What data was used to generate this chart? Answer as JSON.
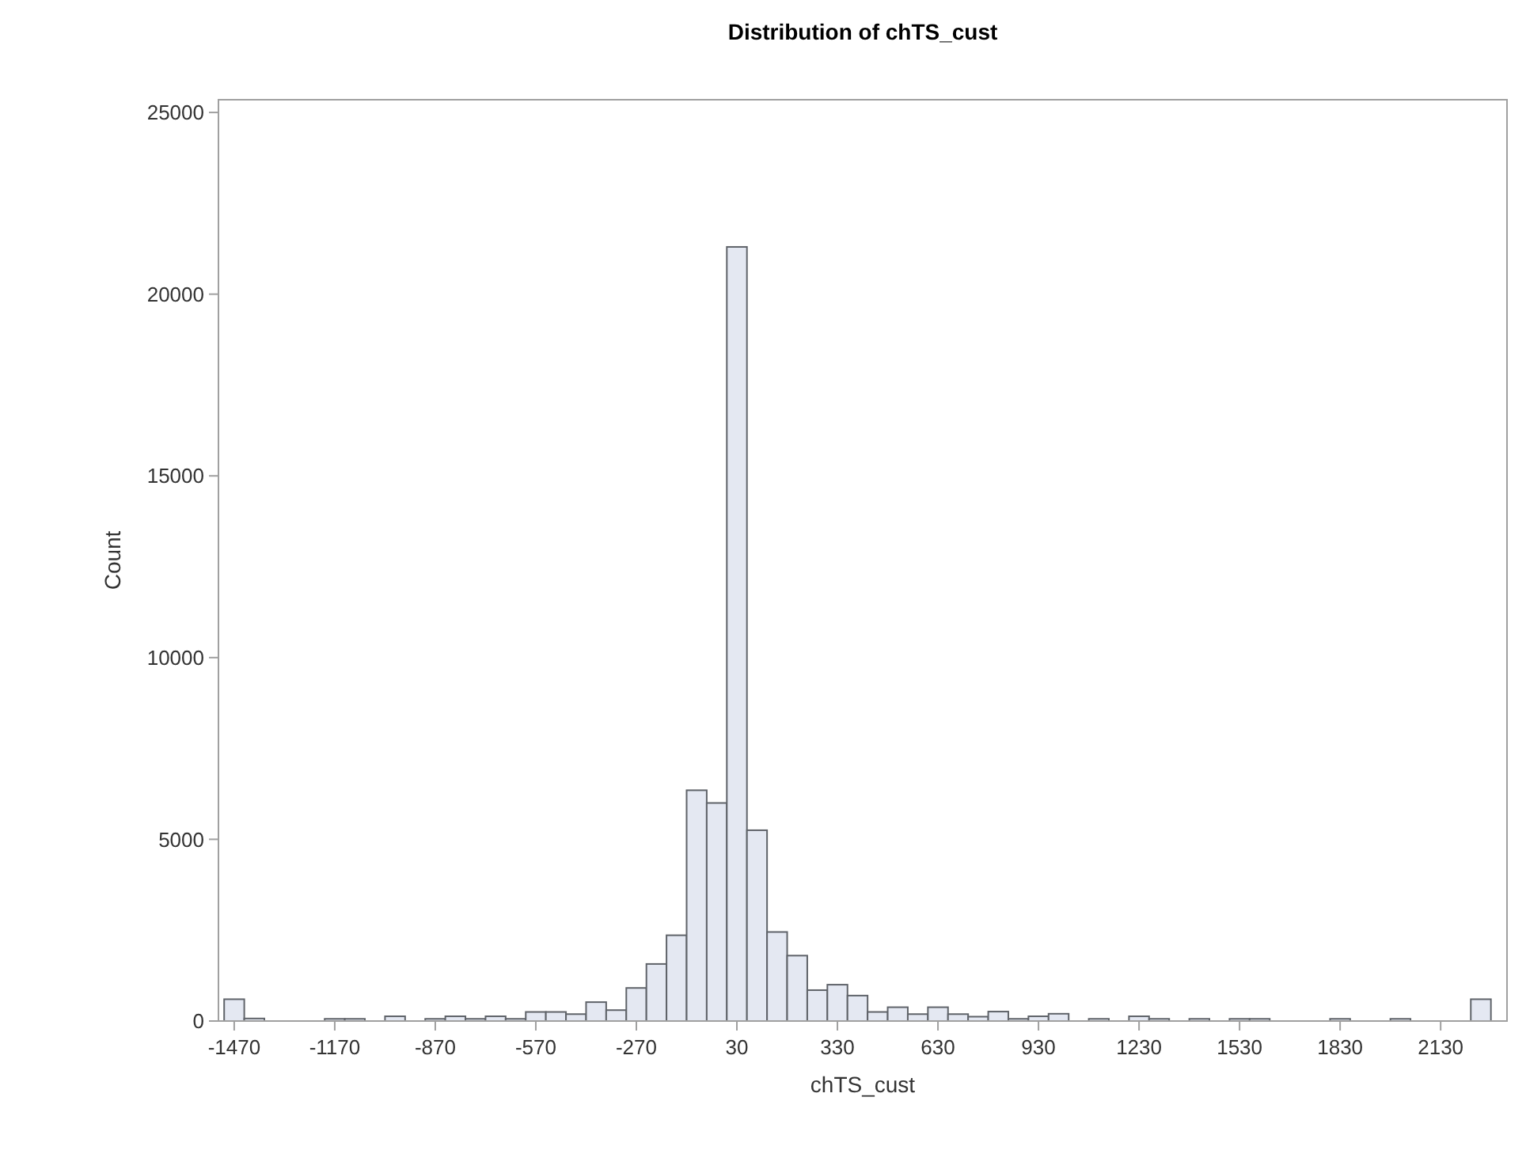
{
  "chart_data": {
    "type": "histogram",
    "title": "Distribution of chTS_cust",
    "xlabel": "chTS_cust",
    "ylabel": "Count",
    "bins": [
      -1500,
      -1440,
      -1380,
      -1320,
      -1260,
      -1200,
      -1140,
      -1080,
      -1020,
      -960,
      -900,
      -840,
      -780,
      -720,
      -660,
      -600,
      -540,
      -480,
      -420,
      -360,
      -300,
      -240,
      -180,
      -120,
      -60,
      0,
      60,
      120,
      180,
      240,
      300,
      360,
      420,
      480,
      540,
      600,
      660,
      720,
      780,
      840,
      900,
      960,
      1020,
      1080,
      1140,
      1200,
      1260,
      1320,
      1380,
      1440,
      1500,
      1560,
      1620,
      1680,
      1740,
      1800,
      1860,
      1920,
      1980,
      2040,
      2100,
      2160,
      2220,
      2280
    ],
    "values": [
      600,
      70,
      0,
      0,
      0,
      60,
      60,
      0,
      130,
      0,
      60,
      130,
      60,
      130,
      60,
      250,
      250,
      190,
      520,
      300,
      910,
      1570,
      2360,
      6350,
      6000,
      21300,
      5250,
      2450,
      1800,
      850,
      1000,
      700,
      250,
      380,
      190,
      380,
      190,
      120,
      260,
      60,
      130,
      200,
      0,
      60,
      0,
      130,
      60,
      0,
      60,
      0,
      60,
      60,
      0,
      0,
      0,
      60,
      0,
      0,
      60,
      0,
      0,
      0,
      600
    ],
    "color": "#e4e8f2",
    "xlim": [
      -1517,
      2328
    ],
    "ylim": [
      0,
      25350
    ],
    "xticks": [
      -1470,
      -1170,
      -870,
      -570,
      -270,
      30,
      330,
      630,
      930,
      1230,
      1530,
      1830,
      2130
    ],
    "yticks": [
      0,
      5000,
      10000,
      15000,
      20000,
      25000
    ],
    "grid": false
  }
}
